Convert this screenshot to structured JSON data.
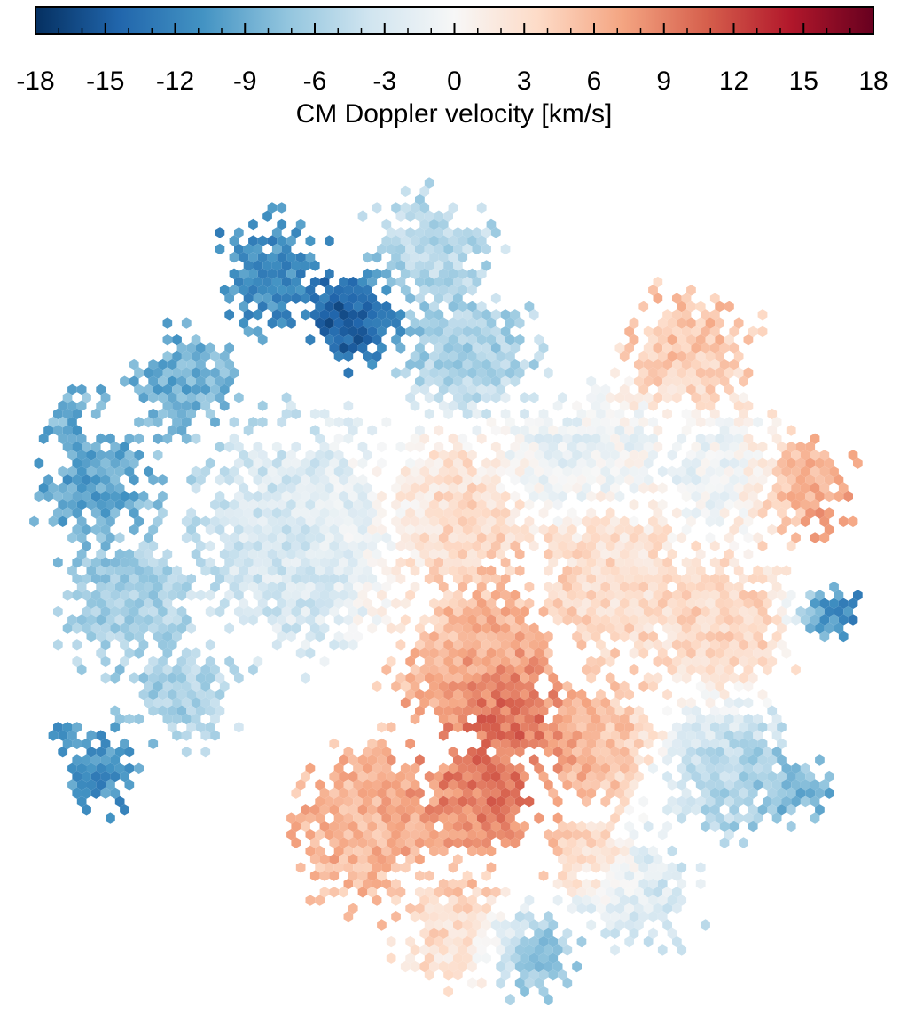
{
  "chart_data": {
    "type": "heatmap",
    "title": "",
    "colorbar": {
      "label": "CM Doppler velocity [km/s]",
      "range": [
        -18,
        18
      ],
      "ticks": [
        "-18",
        "-15",
        "-12",
        "-9",
        "-6",
        "-3",
        "0",
        "3",
        "6",
        "9",
        "12",
        "15",
        "18"
      ],
      "tick_values": [
        -18,
        -15,
        -12,
        -9,
        -6,
        -3,
        0,
        3,
        6,
        9,
        12,
        15,
        18
      ],
      "minor_step": 1,
      "position": "top",
      "colormap": [
        "#053061",
        "#2166ac",
        "#4393c3",
        "#92c5de",
        "#d1e5f0",
        "#f7f7f7",
        "#fddbc7",
        "#f4a582",
        "#d6604d",
        "#b2182b",
        "#67001f"
      ]
    },
    "map": {
      "shape": "disk",
      "cell": "hexagon",
      "blobs": [
        {
          "u": -0.95,
          "v": -0.45,
          "r": 0.16,
          "val": -8
        },
        {
          "u": -0.82,
          "v": -0.22,
          "r": 0.14,
          "val": -10
        },
        {
          "u": -0.62,
          "v": -0.45,
          "r": 0.12,
          "val": -9
        },
        {
          "u": -0.75,
          "v": 0.05,
          "r": 0.16,
          "val": -6
        },
        {
          "u": -0.82,
          "v": 0.42,
          "r": 0.11,
          "val": -11
        },
        {
          "u": -0.62,
          "v": 0.25,
          "r": 0.12,
          "val": -6
        },
        {
          "u": -0.35,
          "v": -0.1,
          "r": 0.25,
          "val": -3
        },
        {
          "u": -0.42,
          "v": -0.7,
          "r": 0.13,
          "val": -11
        },
        {
          "u": -0.23,
          "v": -0.6,
          "r": 0.1,
          "val": -16
        },
        {
          "u": -0.05,
          "v": -0.75,
          "r": 0.14,
          "val": -5
        },
        {
          "u": 0.03,
          "v": -0.52,
          "r": 0.14,
          "val": -6
        },
        {
          "u": 0.22,
          "v": -0.28,
          "r": 0.12,
          "val": -2
        },
        {
          "u": 0.0,
          "v": -0.15,
          "r": 0.18,
          "val": 4
        },
        {
          "u": 0.05,
          "v": 0.18,
          "r": 0.18,
          "val": 7
        },
        {
          "u": 0.05,
          "v": 0.5,
          "r": 0.14,
          "val": 10
        },
        {
          "u": 0.13,
          "v": 0.32,
          "r": 0.1,
          "val": 12
        },
        {
          "u": -0.18,
          "v": 0.55,
          "r": 0.18,
          "val": 6
        },
        {
          "u": 0.0,
          "v": 0.8,
          "r": 0.14,
          "val": 3
        },
        {
          "u": 0.32,
          "v": 0.38,
          "r": 0.14,
          "val": 6
        },
        {
          "u": 0.38,
          "v": 0.0,
          "r": 0.18,
          "val": 3
        },
        {
          "u": 0.35,
          "v": -0.3,
          "r": 0.13,
          "val": -1
        },
        {
          "u": 0.55,
          "v": -0.52,
          "r": 0.15,
          "val": 5
        },
        {
          "u": 0.62,
          "v": -0.25,
          "r": 0.15,
          "val": -2
        },
        {
          "u": 0.8,
          "v": -0.22,
          "r": 0.12,
          "val": 8
        },
        {
          "u": 0.6,
          "v": 0.1,
          "r": 0.18,
          "val": 4
        },
        {
          "u": 0.86,
          "v": 0.08,
          "r": 0.07,
          "val": -13
        },
        {
          "u": 0.62,
          "v": 0.42,
          "r": 0.16,
          "val": -5
        },
        {
          "u": 0.76,
          "v": 0.48,
          "r": 0.1,
          "val": -9
        },
        {
          "u": 0.42,
          "v": 0.7,
          "r": 0.14,
          "val": -3
        },
        {
          "u": 0.18,
          "v": 0.85,
          "r": 0.1,
          "val": -8
        },
        {
          "u": 0.3,
          "v": 0.62,
          "r": 0.1,
          "val": 5
        }
      ]
    }
  }
}
